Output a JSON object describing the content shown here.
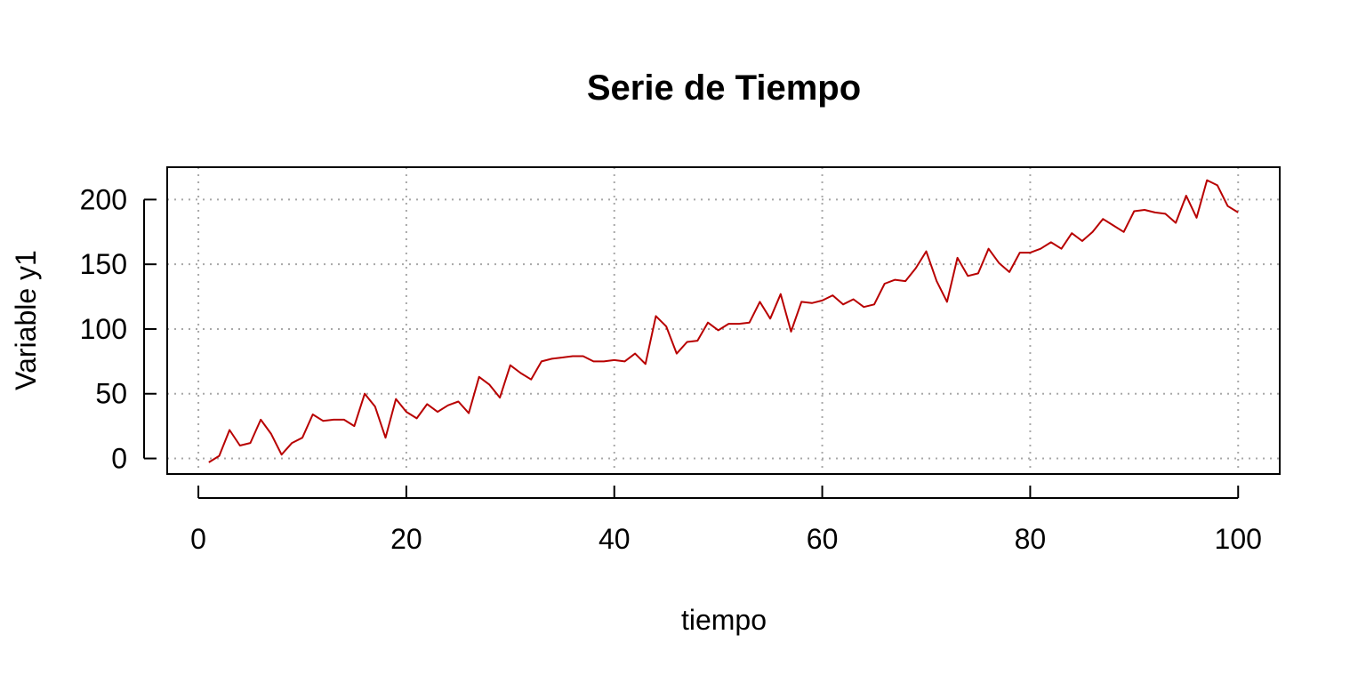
{
  "chart_data": {
    "type": "line",
    "title": "Serie de Tiempo",
    "xlabel": "tiempo",
    "ylabel": "Variable y1",
    "xlim": [
      -3,
      104
    ],
    "ylim": [
      -12,
      225
    ],
    "x_ticks": [
      0,
      20,
      40,
      60,
      80,
      100
    ],
    "y_ticks": [
      0,
      50,
      100,
      150,
      200
    ],
    "grid": true,
    "line_color": "#b80000",
    "series": [
      {
        "x": [
          1,
          2,
          3,
          4,
          5,
          6,
          7,
          8,
          9,
          10,
          11,
          12,
          13,
          14,
          15,
          16,
          17,
          18,
          19,
          20,
          21,
          22,
          23,
          24,
          25,
          26,
          27,
          28,
          29,
          30,
          31,
          32,
          33,
          34,
          35,
          36,
          37,
          38,
          39,
          40,
          41,
          42,
          43,
          44,
          45,
          46,
          47,
          48,
          49,
          50,
          51,
          52,
          53,
          54,
          55,
          56,
          57,
          58,
          59,
          60,
          61,
          62,
          63,
          64,
          65,
          66,
          67,
          68,
          69,
          70,
          71,
          72,
          73,
          74,
          75,
          76,
          77,
          78,
          79,
          80,
          81,
          82,
          83,
          84,
          85,
          86,
          87,
          88,
          89,
          90,
          91,
          92,
          93,
          94,
          95,
          96,
          97,
          98,
          99,
          100
        ],
        "values": [
          -3,
          2,
          22,
          10,
          12,
          30,
          19,
          3,
          12,
          16,
          34,
          29,
          30,
          30,
          25,
          50,
          40,
          16,
          46,
          36,
          31,
          42,
          36,
          41,
          44,
          35,
          63,
          57,
          47,
          72,
          66,
          61,
          75,
          77,
          78,
          79,
          79,
          75,
          75,
          76,
          75,
          81,
          73,
          110,
          102,
          81,
          90,
          91,
          105,
          99,
          104,
          104,
          105,
          121,
          108,
          127,
          98,
          121,
          120,
          122,
          126,
          119,
          123,
          117,
          119,
          135,
          138,
          137,
          147,
          160,
          137,
          121,
          155,
          141,
          143,
          162,
          151,
          144,
          159,
          159,
          162,
          167,
          162,
          174,
          168,
          175,
          185,
          180,
          175,
          191,
          192,
          190,
          189,
          182,
          203,
          186,
          215,
          211,
          195,
          190
        ]
      }
    ]
  }
}
